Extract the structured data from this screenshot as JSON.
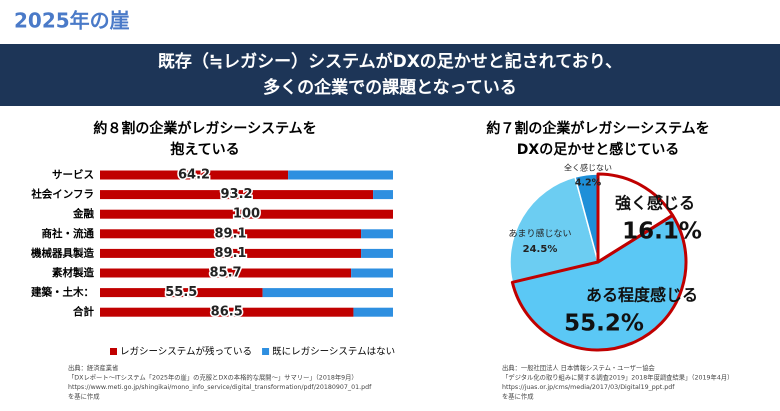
{
  "header": {
    "title": "2025年の崖"
  },
  "banner": {
    "lines": [
      "既存（≒レガシー）システムがDXの足かせと記されており、",
      "多くの企業での課題となっている"
    ]
  },
  "chart_data": [
    {
      "type": "stacked_barh",
      "title": [
        "約８割の企業がレガシーシステムを",
        "抱えている"
      ],
      "categories": [
        "サービス",
        "社会インフラ",
        "金融",
        "商社・流通",
        "機械器具製造",
        "素材製造",
        "建築・土木：",
        "合計"
      ],
      "xlim": [
        0,
        100
      ],
      "series": [
        {
          "name": "レガシーシステムが残っている",
          "color": "#c00000",
          "values": [
            64.2,
            93.2,
            100,
            89.1,
            89.1,
            85.7,
            55.5,
            86.5
          ]
        },
        {
          "name": "既にレガシーシステムはない",
          "color": "#2e8fe0",
          "values": [
            35.8,
            6.8,
            0,
            10.9,
            10.9,
            14.3,
            44.5,
            13.5
          ]
        }
      ],
      "source": [
        "出典：経済産業省",
        "「DXレポート～ITシステム「2025年の崖」の克服とDXの本格的な展開～」サマリー」（2018年9月）",
        "https://www.meti.go.jp/shingikai/mono_info_service/digital_transformation/pdf/20180907_01.pdf",
        "を基に作成"
      ]
    },
    {
      "type": "pie",
      "title": [
        "約７割の企業がレガシーシステムを",
        "DXの足かせと感じている"
      ],
      "categories": [
        "強く感じる",
        "ある程度感じる",
        "あまり感じない",
        "全く感じない"
      ],
      "values": [
        16.1,
        55.2,
        24.5,
        4.2
      ],
      "value_labels": [
        "16.1%",
        "55.2%",
        "24.5%",
        "4.2%"
      ],
      "colors": [
        "#ffffff",
        "#5bc8f5",
        "#6ccdf2",
        "#1e8fd8"
      ],
      "source": [
        "出典：一般社団法人 日本情報システム・ユーザー協会",
        "「デジタル化の取り組みに関する調査2019」2018年度調査結果」（2019年4月）",
        "https://juas.or.jp/cms/media/2017/03/Digital19_ppt.pdf",
        "を基に作成"
      ]
    }
  ]
}
